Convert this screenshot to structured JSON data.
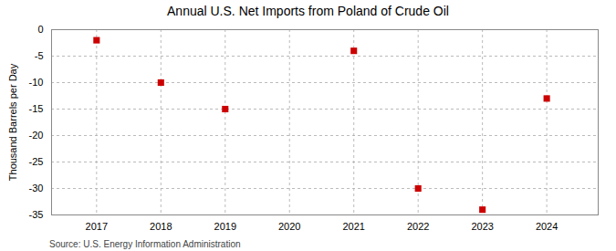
{
  "chart_data": {
    "type": "scatter",
    "title": "Annual U.S. Net Imports from Poland of Crude Oil",
    "ylabel": "Thousand Barrels per Day",
    "source": "Source: U.S. Energy Information Administration",
    "x": [
      2017,
      2018,
      2019,
      2020,
      2021,
      2022,
      2023,
      2024
    ],
    "values": [
      -2,
      -10,
      -15,
      null,
      -4,
      -30,
      -34,
      -13
    ],
    "color": "#cc0000",
    "marker": "square",
    "xlim": [
      2016.3,
      2024.8
    ],
    "xticks": [
      2017,
      2018,
      2019,
      2020,
      2021,
      2022,
      2023,
      2024
    ],
    "ylim": [
      -35,
      0
    ],
    "yticks": [
      0,
      -5,
      -10,
      -15,
      -20,
      -25,
      -30,
      -35
    ],
    "grid": true
  }
}
